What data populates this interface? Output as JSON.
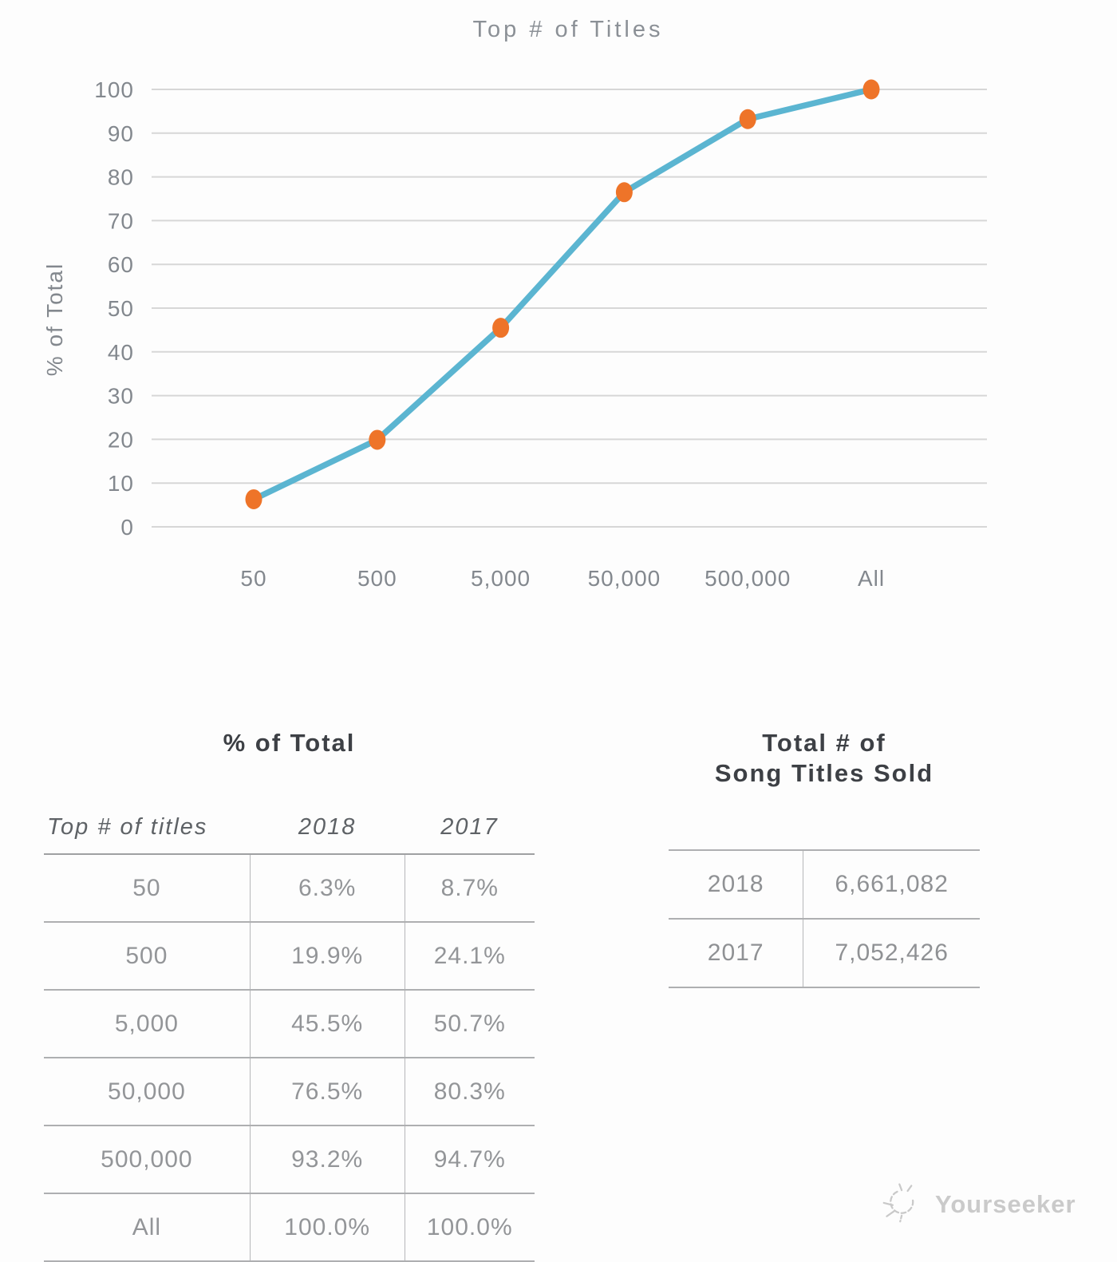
{
  "chart_data": {
    "type": "line",
    "title": "Top # of Titles",
    "xlabel": "",
    "ylabel": "% of Total",
    "categories": [
      "50",
      "500",
      "5,000",
      "50,000",
      "500,000",
      "All"
    ],
    "series": [
      {
        "name": "2018",
        "values": [
          6.3,
          19.9,
          45.5,
          76.5,
          93.2,
          100.0
        ]
      }
    ],
    "ylim": [
      0,
      100
    ],
    "yticks": [
      "0",
      "10",
      "20",
      "30",
      "40",
      "50",
      "60",
      "70",
      "80",
      "90",
      "100"
    ],
    "grid": true,
    "legend": "none",
    "line_color": "#5bb5d1",
    "marker_color": "#ee7429",
    "grid_color": "#d7d7d7",
    "axis_text_color": "#83888e",
    "title_color": "#8b9096"
  },
  "percent_table": {
    "title": "% of Total",
    "columns": [
      "Top # of titles",
      "2018",
      "2017"
    ],
    "rows": [
      [
        "50",
        "6.3%",
        "8.7%"
      ],
      [
        "500",
        "19.9%",
        "24.1%"
      ],
      [
        "5,000",
        "45.5%",
        "50.7%"
      ],
      [
        "50,000",
        "76.5%",
        "80.3%"
      ],
      [
        "500,000",
        "93.2%",
        "94.7%"
      ],
      [
        "All",
        "100.0%",
        "100.0%"
      ]
    ]
  },
  "totals_table": {
    "title": "Total # of\nSong Titles Sold",
    "rows": [
      [
        "2018",
        "6,661,082"
      ],
      [
        "2017",
        "7,052,426"
      ]
    ]
  },
  "watermark": {
    "label": "Yourseeker"
  }
}
